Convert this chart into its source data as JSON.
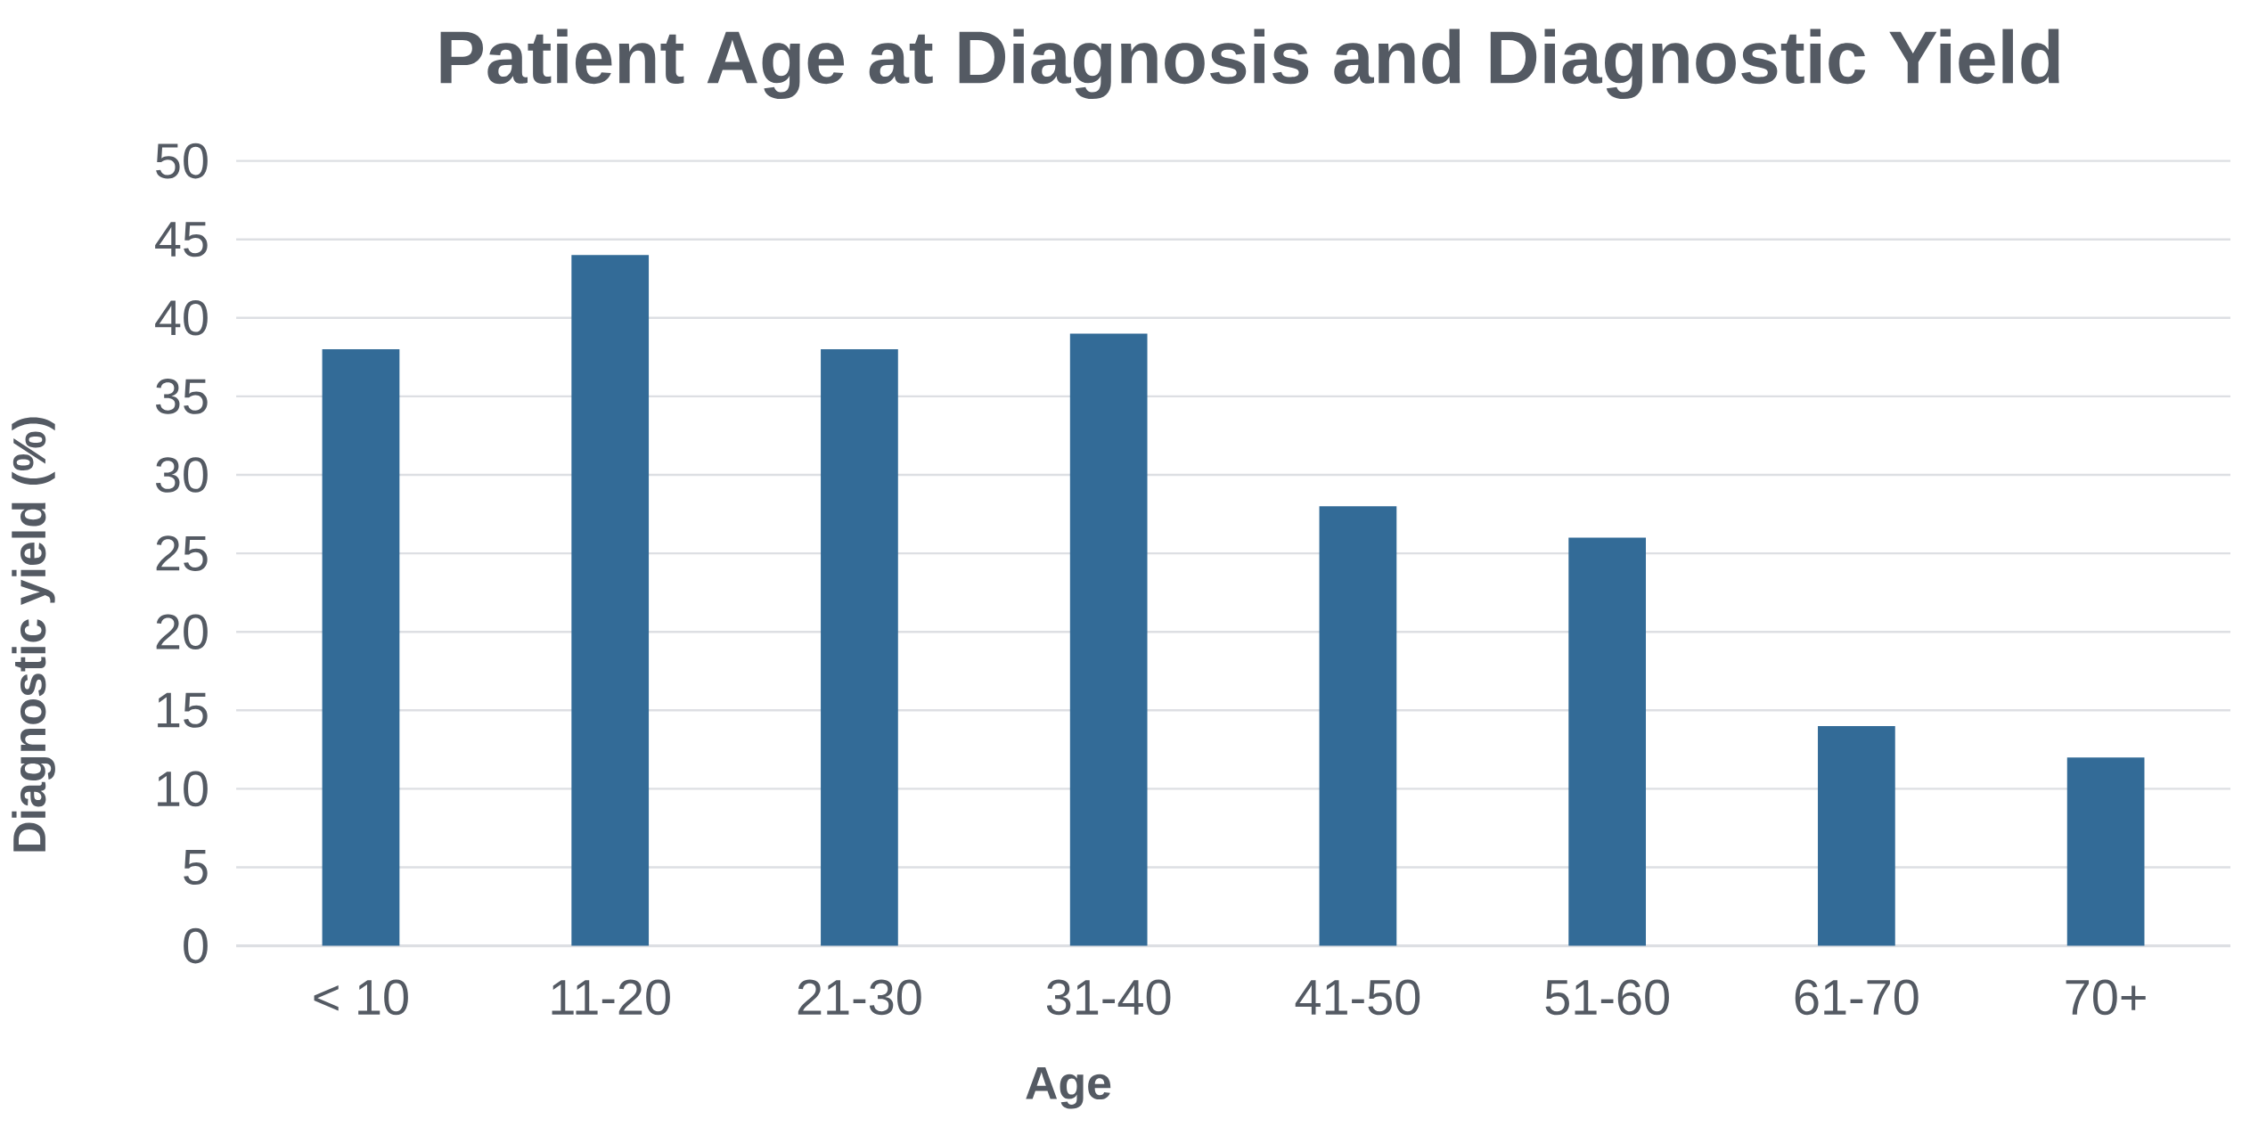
{
  "chart_data": {
    "type": "bar",
    "title": "Patient Age at Diagnosis and Diagnostic Yield",
    "xlabel": "Age",
    "ylabel": "Diagnostic yield (%)",
    "categories": [
      "< 10",
      "11-20",
      "21-30",
      "31-40",
      "41-50",
      "51-60",
      "61-70",
      "70+"
    ],
    "values": [
      38,
      44,
      38,
      39,
      28,
      26,
      14,
      12
    ],
    "color": "#336b97",
    "ylim": [
      0,
      50
    ],
    "yticks": [
      0,
      5,
      10,
      15,
      20,
      25,
      30,
      35,
      40,
      45,
      50
    ],
    "grid": "y"
  }
}
